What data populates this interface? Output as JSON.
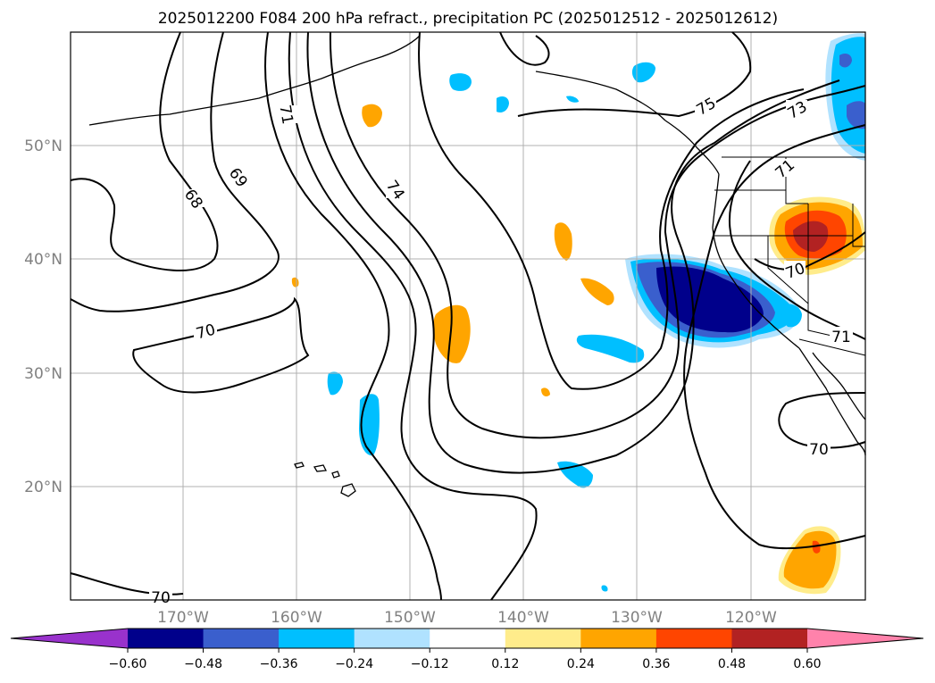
{
  "title": "2025012200 F084 200 hPa refract., precipitation PC (2025012512 - 2025012612)",
  "map": {
    "lat_labels": [
      "50°N",
      "40°N",
      "30°N",
      "20°N"
    ],
    "lon_labels": [
      "170°W",
      "160°W",
      "150°W",
      "140°W",
      "130°W",
      "120°W"
    ],
    "contour_labels": [
      "68",
      "69",
      "71",
      "74",
      "75",
      "73",
      "71",
      "70",
      "70",
      "71",
      "70",
      "70"
    ],
    "gridlines": true
  },
  "colorbar": {
    "ticks": [
      "−0.60",
      "−0.48",
      "−0.36",
      "−0.24",
      "−0.12",
      "0.12",
      "0.24",
      "0.36",
      "0.48",
      "0.60"
    ],
    "colors": [
      "#9932cc",
      "#00008b",
      "#3a5fcd",
      "#00bfff",
      "#b0e2ff",
      "#ffffff",
      "#ffec8b",
      "#ffa500",
      "#ff4500",
      "#b22222",
      "#ff82ab"
    ],
    "extend": "both"
  },
  "colors": {
    "contour": "#000000",
    "grid": "#b0b0b0",
    "coast": "#000000"
  }
}
